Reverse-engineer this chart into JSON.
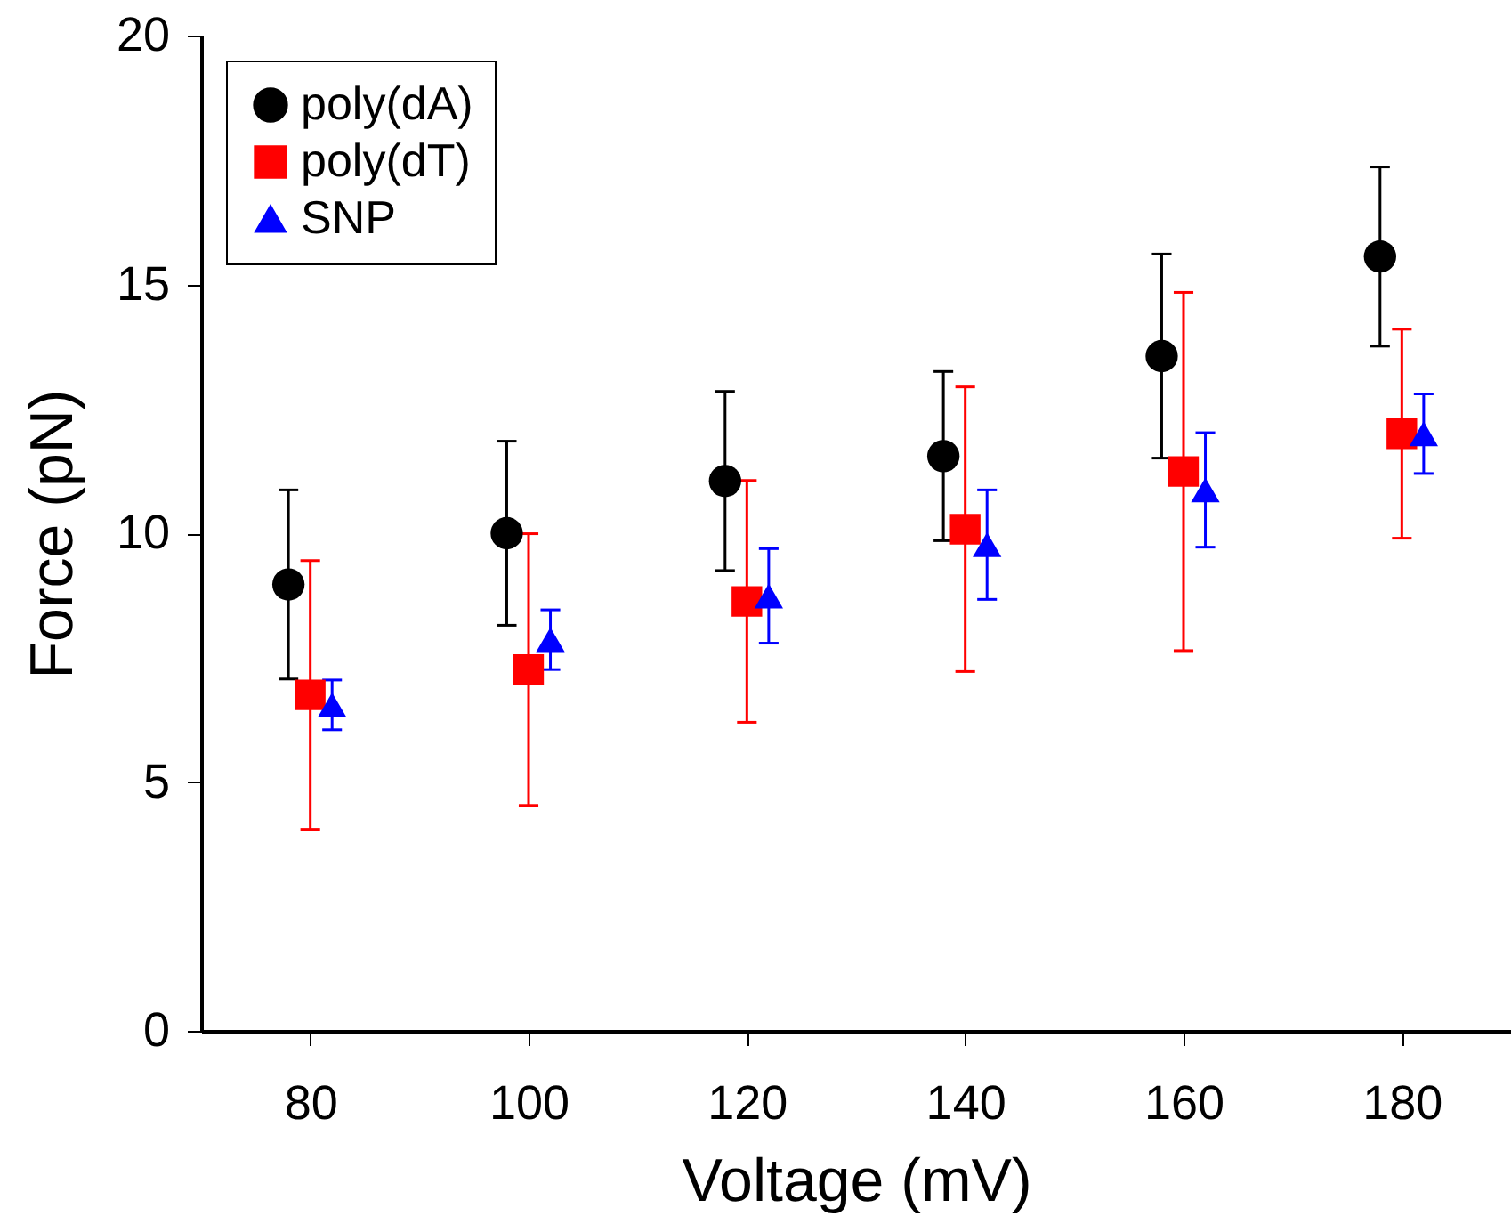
{
  "chart_data": {
    "type": "scatter",
    "xlabel": "Voltage (mV)",
    "ylabel": "Force (pN)",
    "xlim": [
      70,
      190
    ],
    "xticks": [
      80,
      100,
      120,
      140,
      160,
      180
    ],
    "ylim": [
      0,
      20
    ],
    "yticks": [
      0,
      5,
      10,
      15,
      20
    ],
    "grid": false,
    "legend": "top left",
    "series": [
      {
        "name": "poly(dA)",
        "color": "#000000",
        "marker": "circle",
        "x": [
          78,
          98,
          118,
          138,
          158,
          178
        ],
        "values": [
          8.97,
          10.0,
          11.05,
          11.55,
          13.56,
          15.56
        ],
        "errors": [
          1.9,
          1.85,
          1.8,
          1.7,
          2.05,
          1.8
        ]
      },
      {
        "name": "poly(dT)",
        "color": "#ff0000",
        "marker": "square",
        "x": [
          80,
          100,
          120,
          140,
          160,
          180
        ],
        "values": [
          6.75,
          7.26,
          8.63,
          10.08,
          11.24,
          12.0
        ],
        "errors": [
          2.7,
          2.73,
          2.43,
          2.86,
          3.6,
          2.1
        ]
      },
      {
        "name": "SNP",
        "color": "#0000ff",
        "marker": "triangle",
        "x": [
          82,
          102,
          122,
          142,
          162,
          182
        ],
        "values": [
          6.55,
          7.86,
          8.74,
          9.77,
          10.87,
          12.0
        ],
        "errors": [
          0.5,
          0.6,
          0.95,
          1.1,
          1.15,
          0.8
        ]
      }
    ]
  }
}
